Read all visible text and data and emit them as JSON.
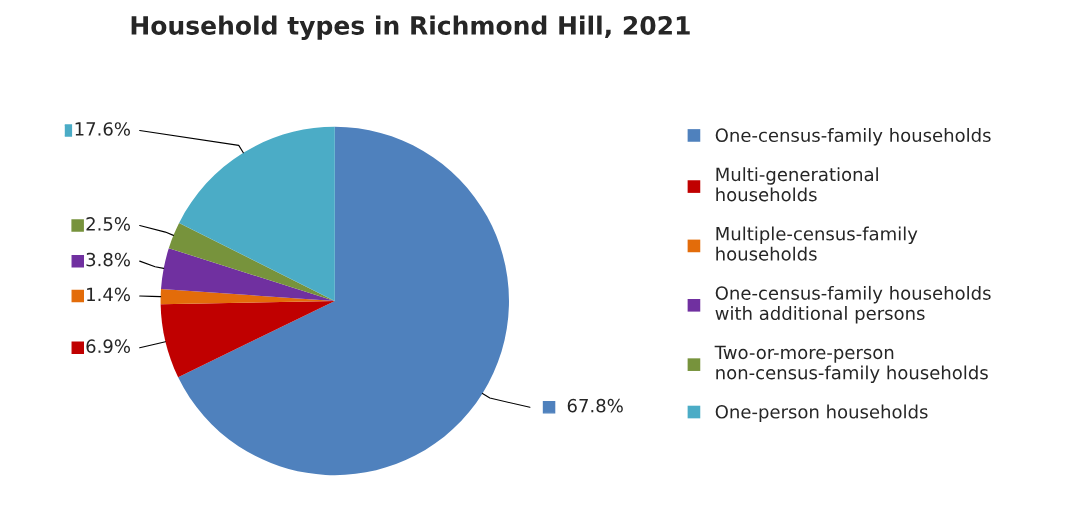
{
  "chart_data": {
    "type": "pie",
    "title": "Household types in Richmond Hill, 2021",
    "categories": [
      "One-census-family households",
      "Multi-generational households",
      "Multiple-census-family households",
      "One-census-family households with additional persons",
      "Two-or-more-person non-census-family households",
      "One-person households"
    ],
    "values": [
      67.8,
      6.9,
      1.4,
      3.8,
      2.5,
      17.6
    ],
    "value_labels": [
      "67.8%",
      "6.9%",
      "1.4%",
      "3.8%",
      "2.5%",
      "17.6%"
    ],
    "colors": [
      "#4f81bd",
      "#c00000",
      "#e36c0a",
      "#7030a0",
      "#77933c",
      "#4bacc6"
    ],
    "legend": "right"
  }
}
